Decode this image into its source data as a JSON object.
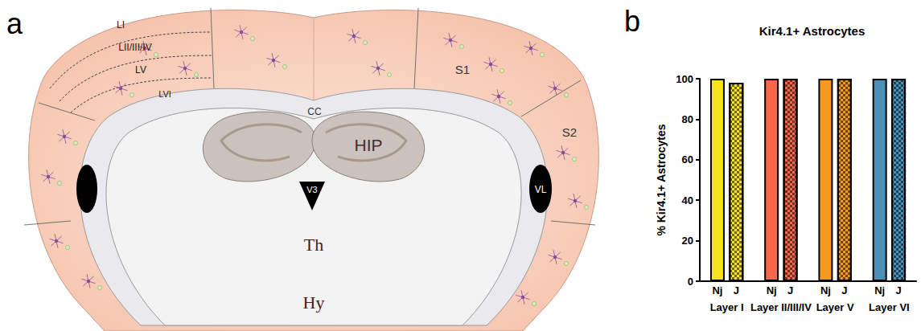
{
  "diagram": {
    "panel_label": "a",
    "layer_labels": [
      "LI",
      "LII/III/IV",
      "LV",
      "LVI"
    ],
    "region_labels": {
      "somatosensory_1": "S1",
      "somatosensory_2": "S2",
      "corpus_callosum": "CC",
      "hippocampus": "HIP",
      "lateral_ventricle": "VL",
      "third_ventricle": "V3",
      "thalamus": "Th",
      "hypothalamus": "Hy"
    }
  },
  "chart_data": {
    "panel_label": "b",
    "type": "bar",
    "title": "Kir4.1+ Astrocytes",
    "ylabel": "% Kir4.1+ Astrocytes",
    "categories": [
      "Layer I",
      "Layer II/III/IV",
      "Layer V",
      "Layer VI"
    ],
    "series": [
      {
        "name": "Nj",
        "values": [
          100,
          100,
          100,
          100
        ],
        "colors": [
          "#f7e220",
          "#f26a4b",
          "#f59a1e",
          "#4a90b8"
        ]
      },
      {
        "name": "J",
        "values": [
          98,
          100,
          100,
          100
        ],
        "colors": [
          "#f7e220",
          "#f26a4b",
          "#f59a1e",
          "#4a90b8"
        ]
      }
    ],
    "ylim": [
      0,
      100
    ],
    "yticks": [
      0,
      20,
      40,
      60,
      80,
      100
    ],
    "grid": false
  }
}
